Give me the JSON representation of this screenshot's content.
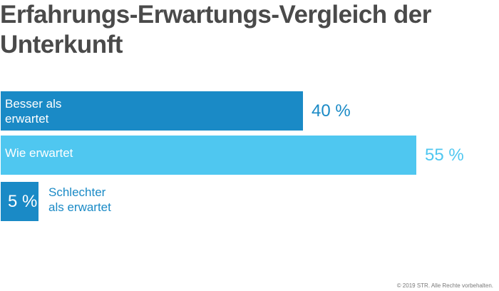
{
  "title": "Erfahrungs-Erwartungs-Vergleich der Unterkunft",
  "copyright": "© 2019 STR. Alle Rechte vorbehalten.",
  "colors": {
    "dark_blue": "#1a8ac6",
    "light_blue": "#4fc7f0",
    "title": "#4a4a4a"
  },
  "chart_data": {
    "type": "bar",
    "orientation": "horizontal",
    "title": "Erfahrungs-Erwartungs-Vergleich der Unterkunft",
    "xlabel": "",
    "ylabel": "",
    "xlim": [
      0,
      55
    ],
    "grid": false,
    "categories": [
      "Besser als\nerwartet",
      "Wie erwartet",
      "Schlechter\nals erwartet"
    ],
    "values": [
      40,
      55,
      5
    ],
    "value_labels": [
      "40 %",
      "55 %",
      "5 %"
    ],
    "unit": "%",
    "bar_colors": [
      "#1a8ac6",
      "#4fc7f0",
      "#1a8ac6"
    ]
  }
}
